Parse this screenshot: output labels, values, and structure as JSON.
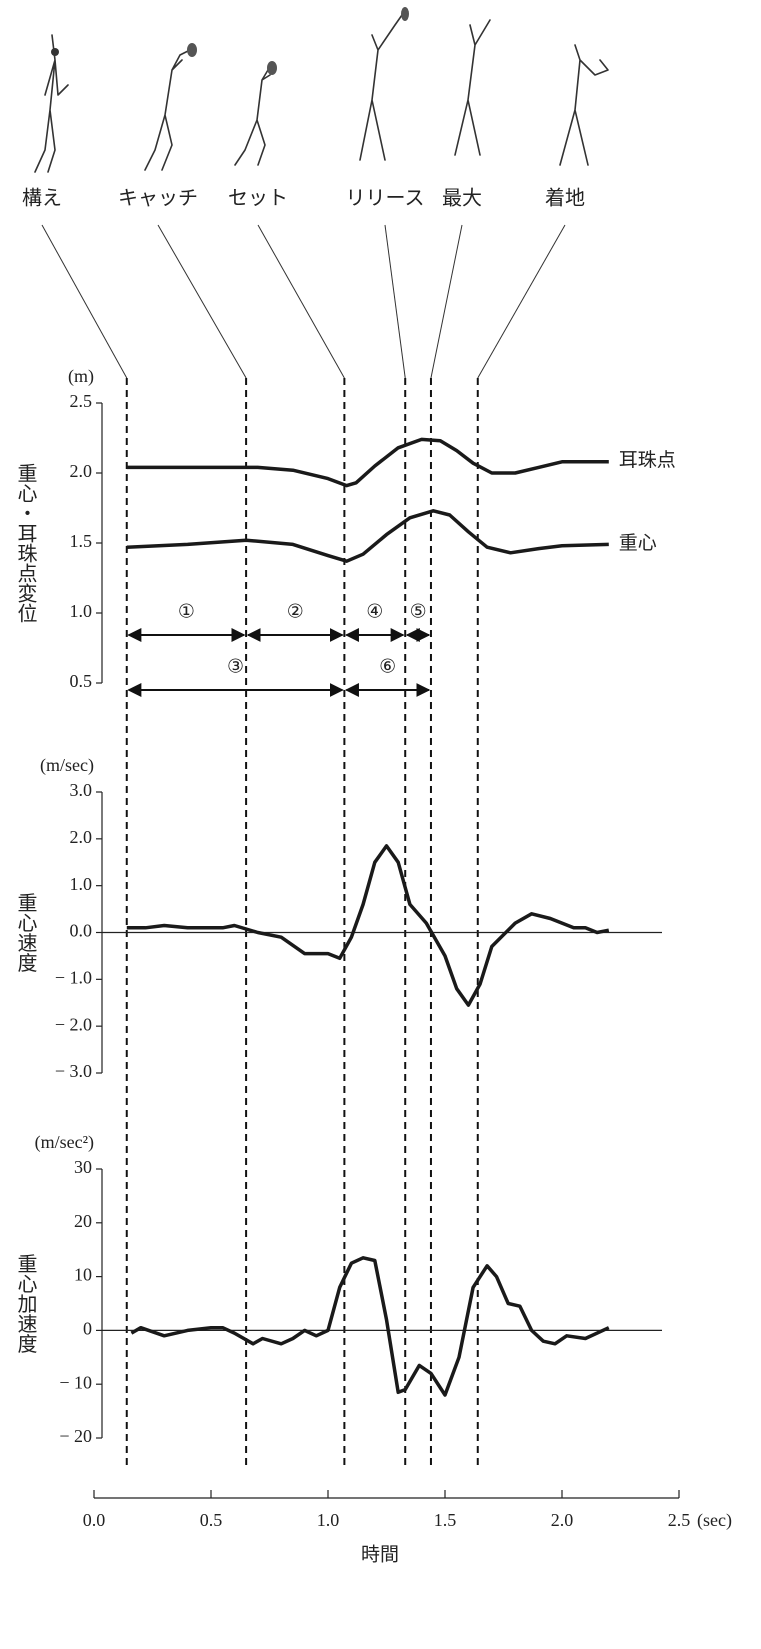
{
  "phases": [
    {
      "label": "構え",
      "time": 0.14
    },
    {
      "label": "キャッチ",
      "time": 0.65
    },
    {
      "label": "セット",
      "time": 1.07
    },
    {
      "label": "リリース",
      "time": 1.33
    },
    {
      "label": "最大",
      "time": 1.44
    },
    {
      "label": "着地",
      "time": 1.64
    }
  ],
  "chart_data": [
    {
      "type": "line",
      "unit": "(m)",
      "ylabel": "重心・耳珠点変位",
      "ylim": [
        0.5,
        2.5
      ],
      "yticks": [
        {
          "value": 0.5,
          "label": "0.5"
        },
        {
          "value": 1,
          "label": "1.0"
        },
        {
          "value": 1.5,
          "label": "1.5"
        },
        {
          "value": 2,
          "label": "2.0"
        },
        {
          "value": 2.5,
          "label": "2.5"
        }
      ],
      "series": [
        {
          "name": "耳珠点",
          "color": "#1a1a1a",
          "x": [
            0.14,
            0.4,
            0.7,
            0.85,
            1.0,
            1.08,
            1.12,
            1.2,
            1.3,
            1.4,
            1.48,
            1.55,
            1.62,
            1.7,
            1.8,
            1.9,
            2.0,
            2.2
          ],
          "values": [
            2.04,
            2.04,
            2.04,
            2.02,
            1.96,
            1.91,
            1.93,
            2.05,
            2.18,
            2.24,
            2.23,
            2.16,
            2.07,
            2.0,
            2.0,
            2.04,
            2.08,
            2.08
          ]
        },
        {
          "name": "重心",
          "color": "#1a1a1a",
          "x": [
            0.14,
            0.4,
            0.65,
            0.85,
            1.0,
            1.08,
            1.15,
            1.25,
            1.35,
            1.45,
            1.52,
            1.6,
            1.68,
            1.78,
            1.9,
            2.0,
            2.2
          ],
          "values": [
            1.47,
            1.49,
            1.52,
            1.49,
            1.41,
            1.37,
            1.42,
            1.56,
            1.68,
            1.73,
            1.7,
            1.58,
            1.47,
            1.43,
            1.46,
            1.48,
            1.49
          ]
        }
      ],
      "intervals": [
        [
          {
            "label": "①",
            "from": 0.14,
            "to": 0.65
          },
          {
            "label": "②",
            "from": 0.65,
            "to": 1.07
          },
          {
            "label": "④",
            "from": 1.07,
            "to": 1.33
          },
          {
            "label": "⑤",
            "from": 1.33,
            "to": 1.44
          }
        ],
        [
          {
            "label": "③",
            "from": 0.14,
            "to": 1.07
          },
          {
            "label": "⑥",
            "from": 1.07,
            "to": 1.44
          }
        ]
      ]
    },
    {
      "type": "line",
      "unit": "(m/sec)",
      "ylabel": "重心速度",
      "ylim": [
        -3,
        3
      ],
      "hline": 0,
      "yticks": [
        {
          "value": -3,
          "label": "− 3.0"
        },
        {
          "value": -2,
          "label": "− 2.0"
        },
        {
          "value": -1,
          "label": "− 1.0"
        },
        {
          "value": 0,
          "label": "0.0"
        },
        {
          "value": 1,
          "label": "1.0"
        },
        {
          "value": 2,
          "label": "2.0"
        },
        {
          "value": 3,
          "label": "3.0"
        }
      ],
      "series": [
        {
          "color": "#1a1a1a",
          "x": [
            0.14,
            0.22,
            0.3,
            0.4,
            0.55,
            0.6,
            0.7,
            0.8,
            0.9,
            1.0,
            1.05,
            1.1,
            1.15,
            1.2,
            1.25,
            1.3,
            1.35,
            1.42,
            1.5,
            1.55,
            1.6,
            1.65,
            1.7,
            1.8,
            1.87,
            1.95,
            2.05,
            2.1,
            2.15,
            2.2
          ],
          "values": [
            0.1,
            0.1,
            0.15,
            0.1,
            0.1,
            0.15,
            0.0,
            -0.1,
            -0.45,
            -0.45,
            -0.55,
            -0.1,
            0.6,
            1.5,
            1.85,
            1.5,
            0.6,
            0.2,
            -0.5,
            -1.2,
            -1.55,
            -1.1,
            -0.3,
            0.2,
            0.4,
            0.3,
            0.1,
            0.1,
            0.0,
            0.05
          ]
        }
      ]
    },
    {
      "type": "line",
      "unit": "(m/sec²)",
      "ylabel": "重心加速度",
      "ylim": [
        -20,
        30
      ],
      "hline": 0,
      "yticks": [
        {
          "value": -20,
          "label": "− 20"
        },
        {
          "value": -10,
          "label": "− 10"
        },
        0,
        10,
        20,
        30
      ],
      "xlim": [
        0,
        2.5
      ],
      "xlabel": "時間",
      "xunit": "(sec)",
      "xticks": [
        {
          "value": 0,
          "label": "0.0"
        },
        {
          "value": 0.5,
          "label": "0.5"
        },
        {
          "value": 1,
          "label": "1.0"
        },
        {
          "value": 1.5,
          "label": "1.5"
        },
        {
          "value": 2,
          "label": "2.0"
        },
        {
          "value": 2.5,
          "label": "2.5"
        }
      ],
      "series": [
        {
          "color": "#1a1a1a",
          "x": [
            0.16,
            0.2,
            0.3,
            0.4,
            0.5,
            0.55,
            0.6,
            0.68,
            0.72,
            0.8,
            0.85,
            0.9,
            0.95,
            1.0,
            1.05,
            1.1,
            1.15,
            1.2,
            1.25,
            1.3,
            1.33,
            1.39,
            1.44,
            1.5,
            1.56,
            1.62,
            1.68,
            1.72,
            1.77,
            1.82,
            1.87,
            1.92,
            1.97,
            2.02,
            2.1,
            2.2
          ],
          "values": [
            -0.5,
            0.5,
            -1,
            0,
            0.5,
            0.5,
            -0.5,
            -2.5,
            -1.5,
            -2.5,
            -1.5,
            0,
            -1,
            0,
            8,
            12.5,
            13.5,
            13,
            2,
            -11.5,
            -11,
            -6.5,
            -8,
            -12,
            -5,
            8,
            12,
            10,
            5,
            4.5,
            0,
            -2,
            -2.5,
            -1,
            -1.5,
            0.5
          ]
        }
      ]
    }
  ]
}
